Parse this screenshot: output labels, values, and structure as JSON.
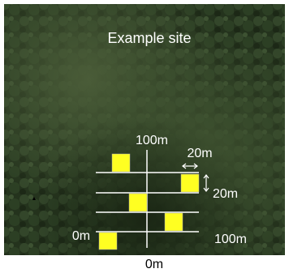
{
  "title": "Example site",
  "labels": {
    "top": "100m",
    "arrow_h": "20m",
    "arrow_v": "20m",
    "left": "0m",
    "right": "100m",
    "bottom": "0m"
  }
}
